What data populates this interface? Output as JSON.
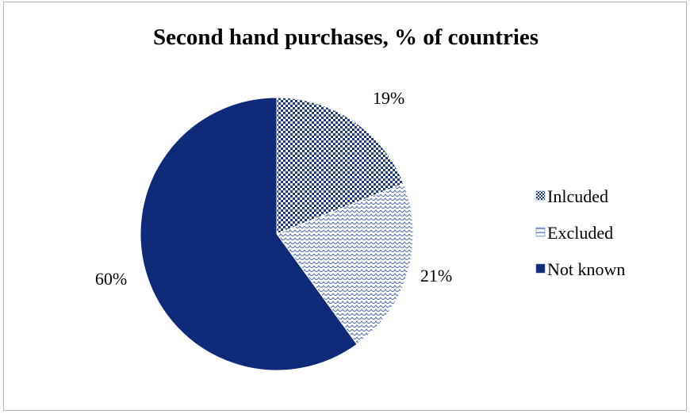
{
  "chart_data": {
    "type": "pie",
    "title": "Second hand purchases, % of countries",
    "categories": [
      "Inlcuded",
      "Excluded",
      "Not known"
    ],
    "values": [
      19,
      21,
      60
    ],
    "data_labels": [
      "19%",
      "21%",
      "60%"
    ],
    "legend_position": "right",
    "colors": {
      "Inlcuded": "#1f3a80",
      "Excluded": "#4664ad",
      "Not known": "#0f2a79"
    },
    "patterns": {
      "Inlcuded": "checkerboard",
      "Excluded": "scales",
      "Not known": "solid"
    }
  }
}
